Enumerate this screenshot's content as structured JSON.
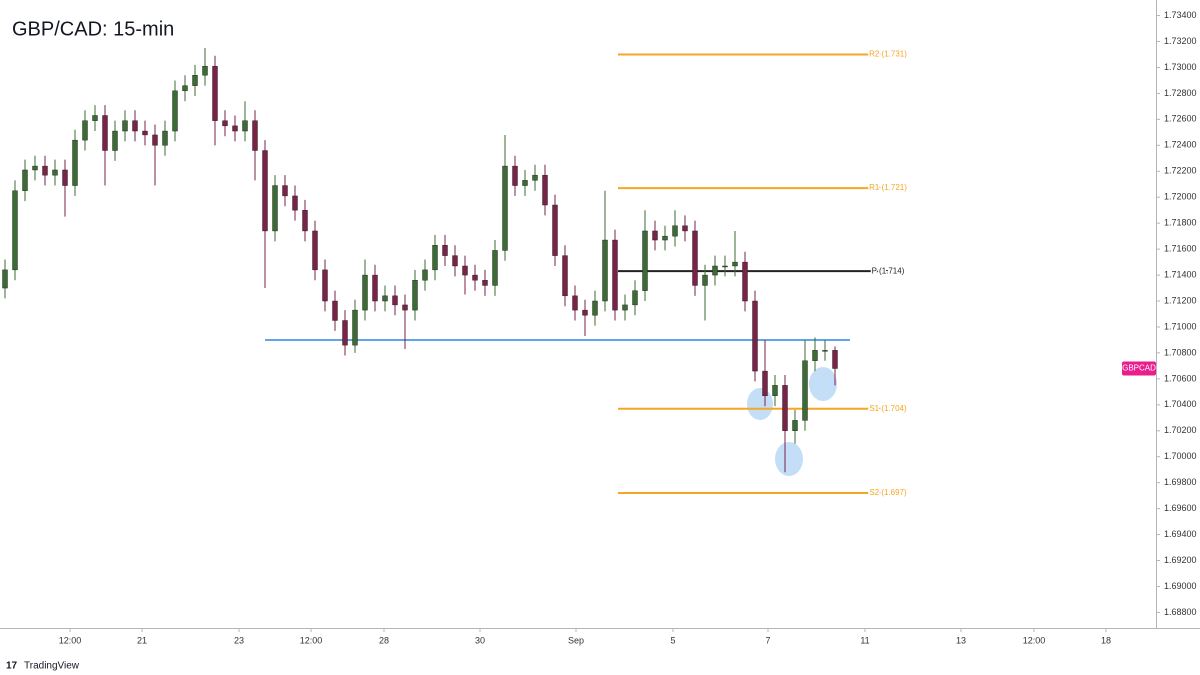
{
  "chart_data": {
    "type": "candlestick",
    "title": "GBP/CAD: 15-min",
    "symbol": "GBPCAD",
    "footer": "TradingView",
    "up_color": "#3d6b35",
    "down_color": "#7a2348",
    "x": [
      0,
      1,
      2,
      3,
      4,
      5,
      6,
      7,
      8,
      9,
      10,
      11,
      12,
      13,
      14,
      15,
      16,
      17,
      18,
      19,
      20,
      21,
      22,
      23,
      24,
      25,
      26,
      27,
      28,
      29,
      30,
      31,
      32,
      33,
      34,
      35,
      36,
      37,
      38,
      39,
      40,
      41,
      42,
      43,
      44,
      45,
      46,
      47,
      48,
      49,
      50,
      51,
      52,
      53,
      54,
      55,
      56,
      57,
      58,
      59,
      60,
      61,
      62,
      63,
      64,
      65,
      66,
      67,
      68,
      69,
      70,
      71,
      72,
      73,
      74,
      75,
      76,
      77,
      78,
      79,
      80,
      81,
      82,
      83
    ],
    "open": [
      1.713,
      1.7144,
      1.7205,
      1.7221,
      1.7224,
      1.7217,
      1.7221,
      1.7209,
      1.7244,
      1.7259,
      1.7263,
      1.7236,
      1.7251,
      1.7259,
      1.7251,
      1.7248,
      1.724,
      1.7251,
      1.7282,
      1.7286,
      1.7294,
      1.7301,
      1.7259,
      1.7255,
      1.7251,
      1.7259,
      1.7236,
      1.7174,
      1.7209,
      1.7201,
      1.719,
      1.7174,
      1.7144,
      1.712,
      1.7105,
      1.7086,
      1.7113,
      1.714,
      1.712,
      1.7124,
      1.7117,
      1.7113,
      1.7136,
      1.7144,
      1.7163,
      1.7155,
      1.7147,
      1.714,
      1.7136,
      1.7132,
      1.7159,
      1.7224,
      1.7209,
      1.7213,
      1.7217,
      1.7194,
      1.7155,
      1.7124,
      1.7113,
      1.7109,
      1.712,
      1.7167,
      1.7113,
      1.7117,
      1.7128,
      1.7174,
      1.7167,
      1.717,
      1.7178,
      1.7174,
      1.7132,
      1.714,
      1.7147,
      1.7147,
      1.715,
      1.712,
      1.7066,
      1.7047,
      1.7055,
      1.702,
      1.7028,
      1.7074,
      1.7082,
      1.7082
    ],
    "high": [
      1.7152,
      1.7213,
      1.7229,
      1.7232,
      1.7232,
      1.7229,
      1.7229,
      1.7252,
      1.7267,
      1.7271,
      1.7271,
      1.7259,
      1.7267,
      1.7267,
      1.7259,
      1.7256,
      1.7259,
      1.729,
      1.7294,
      1.7302,
      1.7315,
      1.7309,
      1.7267,
      1.7263,
      1.7274,
      1.7267,
      1.7244,
      1.7217,
      1.7217,
      1.7209,
      1.7198,
      1.7182,
      1.7152,
      1.7128,
      1.7113,
      1.7121,
      1.7152,
      1.7148,
      1.7132,
      1.7132,
      1.7125,
      1.7144,
      1.7152,
      1.7171,
      1.7171,
      1.7163,
      1.7155,
      1.7148,
      1.7144,
      1.7167,
      1.7248,
      1.7232,
      1.7221,
      1.7225,
      1.7225,
      1.7202,
      1.7163,
      1.7132,
      1.7121,
      1.7128,
      1.7205,
      1.7175,
      1.7125,
      1.7136,
      1.719,
      1.7182,
      1.7178,
      1.719,
      1.7186,
      1.7182,
      1.7148,
      1.7155,
      1.7155,
      1.7174,
      1.7158,
      1.7128,
      1.709,
      1.7063,
      1.7063,
      1.7036,
      1.709,
      1.7092,
      1.709,
      1.7085
    ],
    "low": [
      1.7122,
      1.7136,
      1.7197,
      1.7213,
      1.7209,
      1.7209,
      1.7185,
      1.7201,
      1.7236,
      1.7251,
      1.7209,
      1.7228,
      1.7243,
      1.7243,
      1.724,
      1.7209,
      1.7232,
      1.7243,
      1.7274,
      1.7278,
      1.7286,
      1.724,
      1.7247,
      1.7243,
      1.7243,
      1.7213,
      1.713,
      1.7166,
      1.7193,
      1.7182,
      1.7166,
      1.7136,
      1.7112,
      1.7097,
      1.7078,
      1.708,
      1.7105,
      1.7112,
      1.7112,
      1.7109,
      1.7083,
      1.7105,
      1.7128,
      1.7136,
      1.7147,
      1.7139,
      1.7125,
      1.7128,
      1.7124,
      1.7124,
      1.7151,
      1.7201,
      1.7201,
      1.7205,
      1.7186,
      1.7147,
      1.7116,
      1.7105,
      1.7093,
      1.7101,
      1.7112,
      1.7105,
      1.7105,
      1.7109,
      1.712,
      1.7159,
      1.7159,
      1.7162,
      1.7166,
      1.7124,
      1.7105,
      1.7132,
      1.7139,
      1.7139,
      1.7112,
      1.7058,
      1.7039,
      1.7039,
      1.6988,
      1.701,
      1.702,
      1.7066,
      1.7074,
      1.7055
    ],
    "close": [
      1.7144,
      1.7205,
      1.7221,
      1.7224,
      1.7217,
      1.7221,
      1.7209,
      1.7244,
      1.7259,
      1.7263,
      1.7236,
      1.7251,
      1.7259,
      1.7251,
      1.7248,
      1.724,
      1.7251,
      1.7282,
      1.7286,
      1.7294,
      1.7301,
      1.7259,
      1.7255,
      1.7251,
      1.7259,
      1.7236,
      1.7174,
      1.7209,
      1.7201,
      1.719,
      1.7174,
      1.7144,
      1.712,
      1.7105,
      1.7086,
      1.7113,
      1.714,
      1.712,
      1.7124,
      1.7117,
      1.7113,
      1.7136,
      1.7144,
      1.7163,
      1.7155,
      1.7147,
      1.714,
      1.7136,
      1.7132,
      1.7159,
      1.7224,
      1.7209,
      1.7213,
      1.7217,
      1.7194,
      1.7155,
      1.7124,
      1.7113,
      1.7109,
      1.712,
      1.7167,
      1.7113,
      1.7117,
      1.7128,
      1.7174,
      1.7167,
      1.717,
      1.7178,
      1.7174,
      1.7132,
      1.714,
      1.7147,
      1.7147,
      1.715,
      1.712,
      1.7066,
      1.7047,
      1.7055,
      1.702,
      1.7028,
      1.7074,
      1.7082,
      1.7082,
      1.7068
    ],
    "xlim": [
      0,
      115
    ],
    "ylim": [
      1.6868,
      1.7352
    ],
    "xticks": [
      {
        "value": 6.5,
        "label": "12:00"
      },
      {
        "value": 13.7,
        "label": "21"
      },
      {
        "value": 23.4,
        "label": "23"
      },
      {
        "value": 30.6,
        "label": "12:00"
      },
      {
        "value": 37.9,
        "label": "28"
      },
      {
        "value": 47.5,
        "label": "30"
      },
      {
        "value": 57.1,
        "label": "Sep"
      },
      {
        "value": 66.8,
        "label": "5"
      },
      {
        "value": 76.3,
        "label": "7"
      },
      {
        "value": 86,
        "label": "11"
      },
      {
        "value": 95.6,
        "label": "13"
      },
      {
        "value": 102.9,
        "label": "12:00"
      },
      {
        "value": 110.1,
        "label": "18"
      }
    ],
    "yticks": [
      {
        "value": 1.734,
        "label": "1.73400"
      },
      {
        "value": 1.732,
        "label": "1.73200"
      },
      {
        "value": 1.73,
        "label": "1.73000"
      },
      {
        "value": 1.728,
        "label": "1.72800"
      },
      {
        "value": 1.726,
        "label": "1.72600"
      },
      {
        "value": 1.724,
        "label": "1.72400"
      },
      {
        "value": 1.722,
        "label": "1.72200"
      },
      {
        "value": 1.72,
        "label": "1.72000"
      },
      {
        "value": 1.718,
        "label": "1.71800"
      },
      {
        "value": 1.716,
        "label": "1.71600"
      },
      {
        "value": 1.714,
        "label": "1.71400"
      },
      {
        "value": 1.712,
        "label": "1.71200"
      },
      {
        "value": 1.71,
        "label": "1.71000"
      },
      {
        "value": 1.708,
        "label": "1.70800"
      },
      {
        "value": 1.706,
        "label": "1.70600"
      },
      {
        "value": 1.704,
        "label": "1.70400"
      },
      {
        "value": 1.702,
        "label": "1.70200"
      },
      {
        "value": 1.7,
        "label": "1.70000"
      },
      {
        "value": 1.698,
        "label": "1.69800"
      },
      {
        "value": 1.696,
        "label": "1.69600"
      },
      {
        "value": 1.694,
        "label": "1.69400"
      },
      {
        "value": 1.692,
        "label": "1.69200"
      },
      {
        "value": 1.69,
        "label": "1.69000"
      },
      {
        "value": 1.688,
        "label": "1.68800"
      }
    ],
    "levels": [
      {
        "label": "R2 (1.731)",
        "value": 1.731,
        "color": "#f5a623",
        "xrange": [
          61.3,
          88.3
        ]
      },
      {
        "label": "R1 (1.721)",
        "value": 1.7207,
        "color": "#f5a623",
        "xrange": [
          61.3,
          88.3
        ]
      },
      {
        "label": "P (1.714)",
        "value": 1.7143,
        "color": "#222222",
        "xrange": [
          61.3,
          88.3
        ]
      },
      {
        "label": "S1 (1.704)",
        "value": 1.7037,
        "color": "#f5a623",
        "xrange": [
          61.3,
          88.3
        ]
      },
      {
        "label": "S2 (1.697)",
        "value": 1.6972,
        "color": "#f5a623",
        "xrange": [
          61.3,
          88.3
        ]
      }
    ],
    "support": {
      "value": 1.709,
      "color": "#2f86e0",
      "xrange": [
        26,
        84.5
      ]
    }
  }
}
